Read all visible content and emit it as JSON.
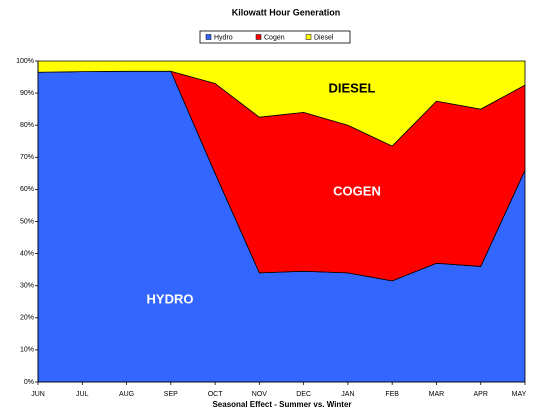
{
  "chart_data": {
    "type": "stacked_area_100",
    "title": "Kilowatt Hour Generation",
    "x_label": "Seasonal Effect - Summer vs. Winter",
    "categories": [
      "JUN",
      "JUL",
      "AUG",
      "SEP",
      "OCT",
      "NOV",
      "DEC",
      "JAN",
      "FEB",
      "MAR",
      "APR",
      "MAY"
    ],
    "series": [
      {
        "name": "Hydro",
        "color": "#3366ff",
        "values": [
          96.5,
          96.7,
          96.8,
          96.8,
          65,
          34,
          34.5,
          34,
          31.5,
          37,
          36,
          66
        ]
      },
      {
        "name": "Cogen",
        "color": "#ff0000",
        "values": [
          0,
          0,
          0,
          0,
          28,
          48.5,
          49.5,
          46,
          42,
          50.5,
          49,
          26.5
        ]
      },
      {
        "name": "Diesel",
        "color": "#ffff00",
        "values": [
          3.5,
          3.3,
          3.2,
          3.2,
          7,
          17.5,
          16,
          20,
          26.5,
          12.5,
          15,
          7.5
        ]
      }
    ],
    "ylim": [
      0,
      100
    ],
    "yticks": [
      {
        "value": 0,
        "label": "0%"
      },
      {
        "value": 10,
        "label": "10%"
      },
      {
        "value": 20,
        "label": "20%"
      },
      {
        "value": 30,
        "label": "30%"
      },
      {
        "value": 40,
        "label": "40%"
      },
      {
        "value": 50,
        "label": "50%"
      },
      {
        "value": 60,
        "label": "60%"
      },
      {
        "value": 70,
        "label": "70%"
      },
      {
        "value": 80,
        "label": "80%"
      },
      {
        "value": 90,
        "label": "90%"
      },
      {
        "value": 100,
        "label": "100%"
      }
    ],
    "legend": "top",
    "annotations": [
      "HYDRO",
      "COGEN",
      "DIESEL"
    ]
  }
}
